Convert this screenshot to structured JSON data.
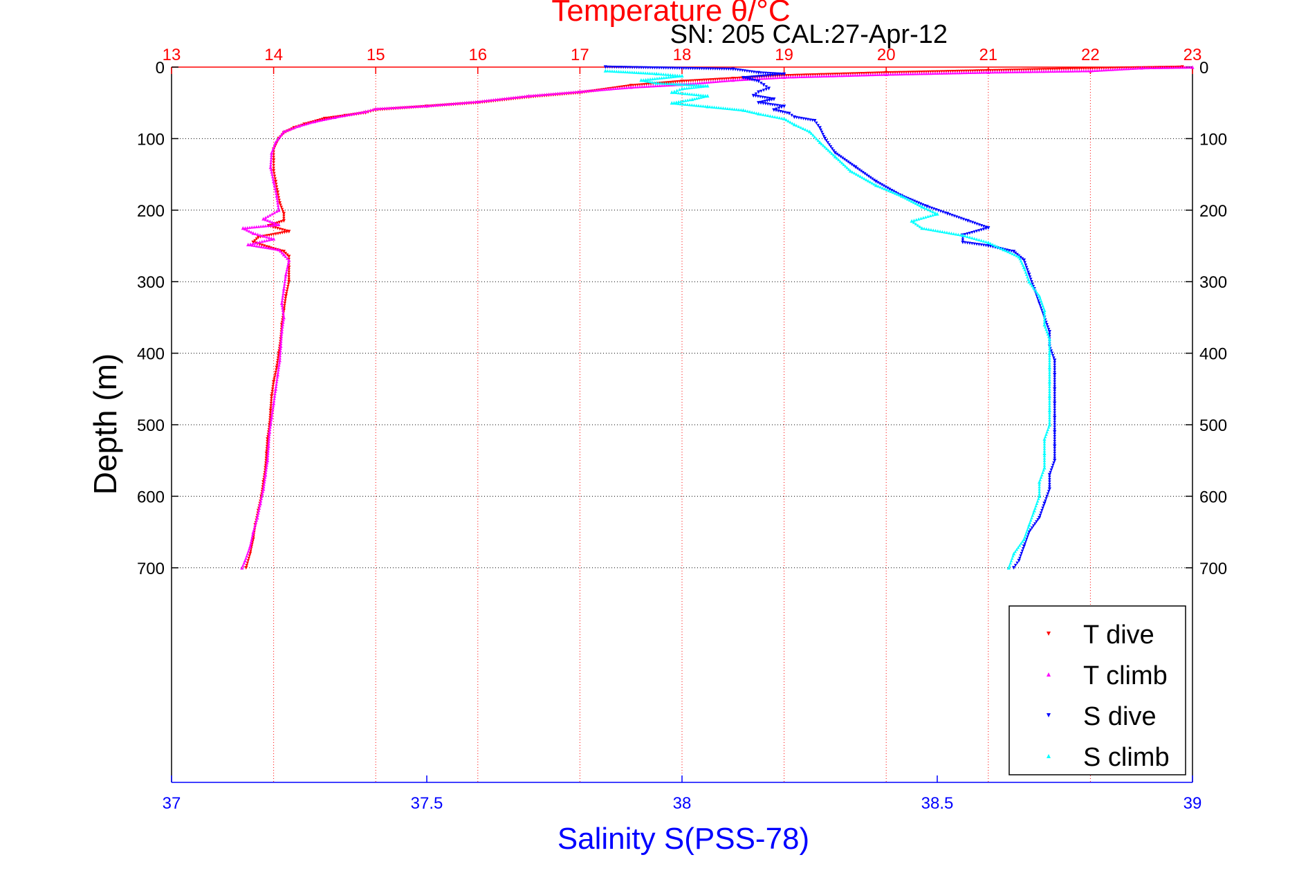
{
  "chart_data": {
    "type": "scatter",
    "title": "Temperature θ/°C",
    "subtitle": "SN: 205  CAL:27-Apr-12",
    "ylabel": "Depth (m)",
    "xlabel": "Salinity S(PSS-78)",
    "y_axis": {
      "range": [
        0,
        1000
      ],
      "inverted": true,
      "ticks": [
        0,
        100,
        200,
        300,
        400,
        500,
        600,
        700
      ]
    },
    "temperature_axis": {
      "position": "top",
      "range": [
        13,
        23
      ],
      "ticks": [
        13,
        14,
        15,
        16,
        17,
        18,
        19,
        20,
        21,
        22,
        23
      ],
      "color": "#ff0000"
    },
    "salinity_axis": {
      "position": "bottom",
      "range": [
        37,
        39
      ],
      "ticks": [
        37,
        37.5,
        38,
        38.5,
        39
      ],
      "tick_labels": [
        "37",
        "37.5",
        "38",
        "38.5",
        "39"
      ],
      "color": "#0000ff"
    },
    "grid": true,
    "legend": {
      "position": "bottom-right"
    },
    "series": [
      {
        "name": "T dive",
        "axis": "temperature",
        "marker": "triangle-down",
        "color": "#ff0000",
        "points": [
          [
            22.9,
            0
          ],
          [
            22.0,
            2
          ],
          [
            21.0,
            5
          ],
          [
            20.0,
            8
          ],
          [
            19.0,
            12
          ],
          [
            18.5,
            16
          ],
          [
            18.0,
            20
          ],
          [
            17.5,
            26
          ],
          [
            17.0,
            36
          ],
          [
            16.5,
            42
          ],
          [
            16.0,
            50
          ],
          [
            15.5,
            55
          ],
          [
            15.0,
            60
          ],
          [
            14.9,
            64
          ],
          [
            14.7,
            68
          ],
          [
            14.5,
            72
          ],
          [
            14.3,
            80
          ],
          [
            14.2,
            85
          ],
          [
            14.1,
            92
          ],
          [
            14.05,
            100
          ],
          [
            14.0,
            115
          ],
          [
            14.0,
            130
          ],
          [
            14.0,
            145
          ],
          [
            14.02,
            160
          ],
          [
            14.04,
            175
          ],
          [
            14.06,
            190
          ],
          [
            14.1,
            205
          ],
          [
            14.1,
            215
          ],
          [
            13.95,
            222
          ],
          [
            14.15,
            230
          ],
          [
            13.85,
            238
          ],
          [
            13.8,
            245
          ],
          [
            13.95,
            252
          ],
          [
            14.1,
            258
          ],
          [
            14.15,
            265
          ],
          [
            14.15,
            280
          ],
          [
            14.15,
            300
          ],
          [
            14.12,
            320
          ],
          [
            14.1,
            340
          ],
          [
            14.08,
            360
          ],
          [
            14.07,
            380
          ],
          [
            14.05,
            400
          ],
          [
            14.03,
            420
          ],
          [
            14.0,
            440
          ],
          [
            13.98,
            460
          ],
          [
            13.97,
            480
          ],
          [
            13.96,
            500
          ],
          [
            13.94,
            520
          ],
          [
            13.93,
            540
          ],
          [
            13.92,
            560
          ],
          [
            13.9,
            580
          ],
          [
            13.88,
            600
          ],
          [
            13.85,
            620
          ],
          [
            13.82,
            640
          ],
          [
            13.8,
            660
          ],
          [
            13.77,
            680
          ],
          [
            13.73,
            700
          ]
        ]
      },
      {
        "name": "T climb",
        "axis": "temperature",
        "marker": "triangle-up",
        "color": "#ff00ff",
        "points": [
          [
            23.0,
            0
          ],
          [
            22.5,
            1
          ],
          [
            22.0,
            5
          ],
          [
            21.0,
            7
          ],
          [
            20.0,
            10
          ],
          [
            19.0,
            14
          ],
          [
            18.5,
            18
          ],
          [
            18.0,
            24
          ],
          [
            17.5,
            28
          ],
          [
            17.0,
            34
          ],
          [
            16.5,
            40
          ],
          [
            16.0,
            48
          ],
          [
            15.5,
            54
          ],
          [
            15.0,
            58
          ],
          [
            14.9,
            62
          ],
          [
            14.6,
            70
          ],
          [
            14.4,
            76
          ],
          [
            14.25,
            82
          ],
          [
            14.1,
            90
          ],
          [
            14.02,
            105
          ],
          [
            13.98,
            120
          ],
          [
            13.97,
            140
          ],
          [
            14.0,
            160
          ],
          [
            14.03,
            180
          ],
          [
            14.05,
            200
          ],
          [
            13.9,
            212
          ],
          [
            14.05,
            220
          ],
          [
            13.7,
            225
          ],
          [
            13.8,
            232
          ],
          [
            14.0,
            240
          ],
          [
            13.75,
            248
          ],
          [
            14.05,
            255
          ],
          [
            14.1,
            262
          ],
          [
            14.15,
            270
          ],
          [
            14.12,
            290
          ],
          [
            14.1,
            310
          ],
          [
            14.08,
            330
          ],
          [
            14.1,
            350
          ],
          [
            14.08,
            370
          ],
          [
            14.07,
            390
          ],
          [
            14.06,
            410
          ],
          [
            14.04,
            430
          ],
          [
            14.02,
            450
          ],
          [
            14.0,
            470
          ],
          [
            13.98,
            490
          ],
          [
            13.96,
            510
          ],
          [
            13.95,
            530
          ],
          [
            13.94,
            550
          ],
          [
            13.92,
            570
          ],
          [
            13.9,
            590
          ],
          [
            13.87,
            610
          ],
          [
            13.84,
            630
          ],
          [
            13.8,
            650
          ],
          [
            13.77,
            670
          ],
          [
            13.72,
            690
          ],
          [
            13.69,
            700
          ]
        ]
      },
      {
        "name": "S dive",
        "axis": "salinity",
        "marker": "triangle-down",
        "color": "#0000ff",
        "points": [
          [
            37.85,
            0
          ],
          [
            38.1,
            3
          ],
          [
            38.15,
            8
          ],
          [
            38.2,
            10
          ],
          [
            38.12,
            15
          ],
          [
            38.15,
            20
          ],
          [
            38.16,
            25
          ],
          [
            38.17,
            30
          ],
          [
            38.15,
            35
          ],
          [
            38.14,
            40
          ],
          [
            38.18,
            45
          ],
          [
            38.15,
            50
          ],
          [
            38.2,
            55
          ],
          [
            38.18,
            60
          ],
          [
            38.21,
            65
          ],
          [
            38.22,
            70
          ],
          [
            38.26,
            75
          ],
          [
            38.27,
            85
          ],
          [
            38.28,
            100
          ],
          [
            38.3,
            120
          ],
          [
            38.34,
            140
          ],
          [
            38.38,
            160
          ],
          [
            38.43,
            180
          ],
          [
            38.48,
            195
          ],
          [
            38.52,
            205
          ],
          [
            38.56,
            215
          ],
          [
            38.6,
            225
          ],
          [
            38.55,
            235
          ],
          [
            38.55,
            245
          ],
          [
            38.6,
            250
          ],
          [
            38.65,
            258
          ],
          [
            38.67,
            270
          ],
          [
            38.68,
            290
          ],
          [
            38.69,
            310
          ],
          [
            38.7,
            330
          ],
          [
            38.71,
            350
          ],
          [
            38.72,
            370
          ],
          [
            38.72,
            390
          ],
          [
            38.73,
            410
          ],
          [
            38.73,
            430
          ],
          [
            38.73,
            450
          ],
          [
            38.73,
            470
          ],
          [
            38.73,
            490
          ],
          [
            38.73,
            510
          ],
          [
            38.73,
            530
          ],
          [
            38.73,
            550
          ],
          [
            38.72,
            570
          ],
          [
            38.72,
            590
          ],
          [
            38.71,
            610
          ],
          [
            38.7,
            630
          ],
          [
            38.68,
            650
          ],
          [
            38.67,
            670
          ],
          [
            38.66,
            690
          ],
          [
            38.65,
            700
          ]
        ]
      },
      {
        "name": "S climb",
        "axis": "salinity",
        "marker": "triangle-up",
        "color": "#00ffff",
        "points": [
          [
            37.85,
            5
          ],
          [
            37.95,
            9
          ],
          [
            38.0,
            12
          ],
          [
            37.92,
            18
          ],
          [
            37.95,
            22
          ],
          [
            38.05,
            26
          ],
          [
            38.0,
            30
          ],
          [
            37.98,
            35
          ],
          [
            38.05,
            40
          ],
          [
            38.02,
            45
          ],
          [
            37.98,
            50
          ],
          [
            38.05,
            55
          ],
          [
            38.12,
            60
          ],
          [
            38.15,
            65
          ],
          [
            38.2,
            72
          ],
          [
            38.22,
            80
          ],
          [
            38.25,
            90
          ],
          [
            38.27,
            105
          ],
          [
            38.3,
            125
          ],
          [
            38.33,
            145
          ],
          [
            38.38,
            165
          ],
          [
            38.43,
            180
          ],
          [
            38.47,
            195
          ],
          [
            38.5,
            205
          ],
          [
            38.45,
            215
          ],
          [
            38.47,
            225
          ],
          [
            38.55,
            235
          ],
          [
            38.6,
            245
          ],
          [
            38.63,
            255
          ],
          [
            38.66,
            265
          ],
          [
            38.67,
            280
          ],
          [
            38.68,
            300
          ],
          [
            38.7,
            320
          ],
          [
            38.71,
            340
          ],
          [
            38.71,
            360
          ],
          [
            38.72,
            380
          ],
          [
            38.72,
            400
          ],
          [
            38.72,
            420
          ],
          [
            38.72,
            440
          ],
          [
            38.72,
            460
          ],
          [
            38.72,
            480
          ],
          [
            38.72,
            500
          ],
          [
            38.71,
            520
          ],
          [
            38.71,
            540
          ],
          [
            38.71,
            560
          ],
          [
            38.7,
            580
          ],
          [
            38.7,
            600
          ],
          [
            38.69,
            620
          ],
          [
            38.68,
            640
          ],
          [
            38.67,
            660
          ],
          [
            38.65,
            680
          ],
          [
            38.64,
            700
          ]
        ]
      }
    ]
  }
}
